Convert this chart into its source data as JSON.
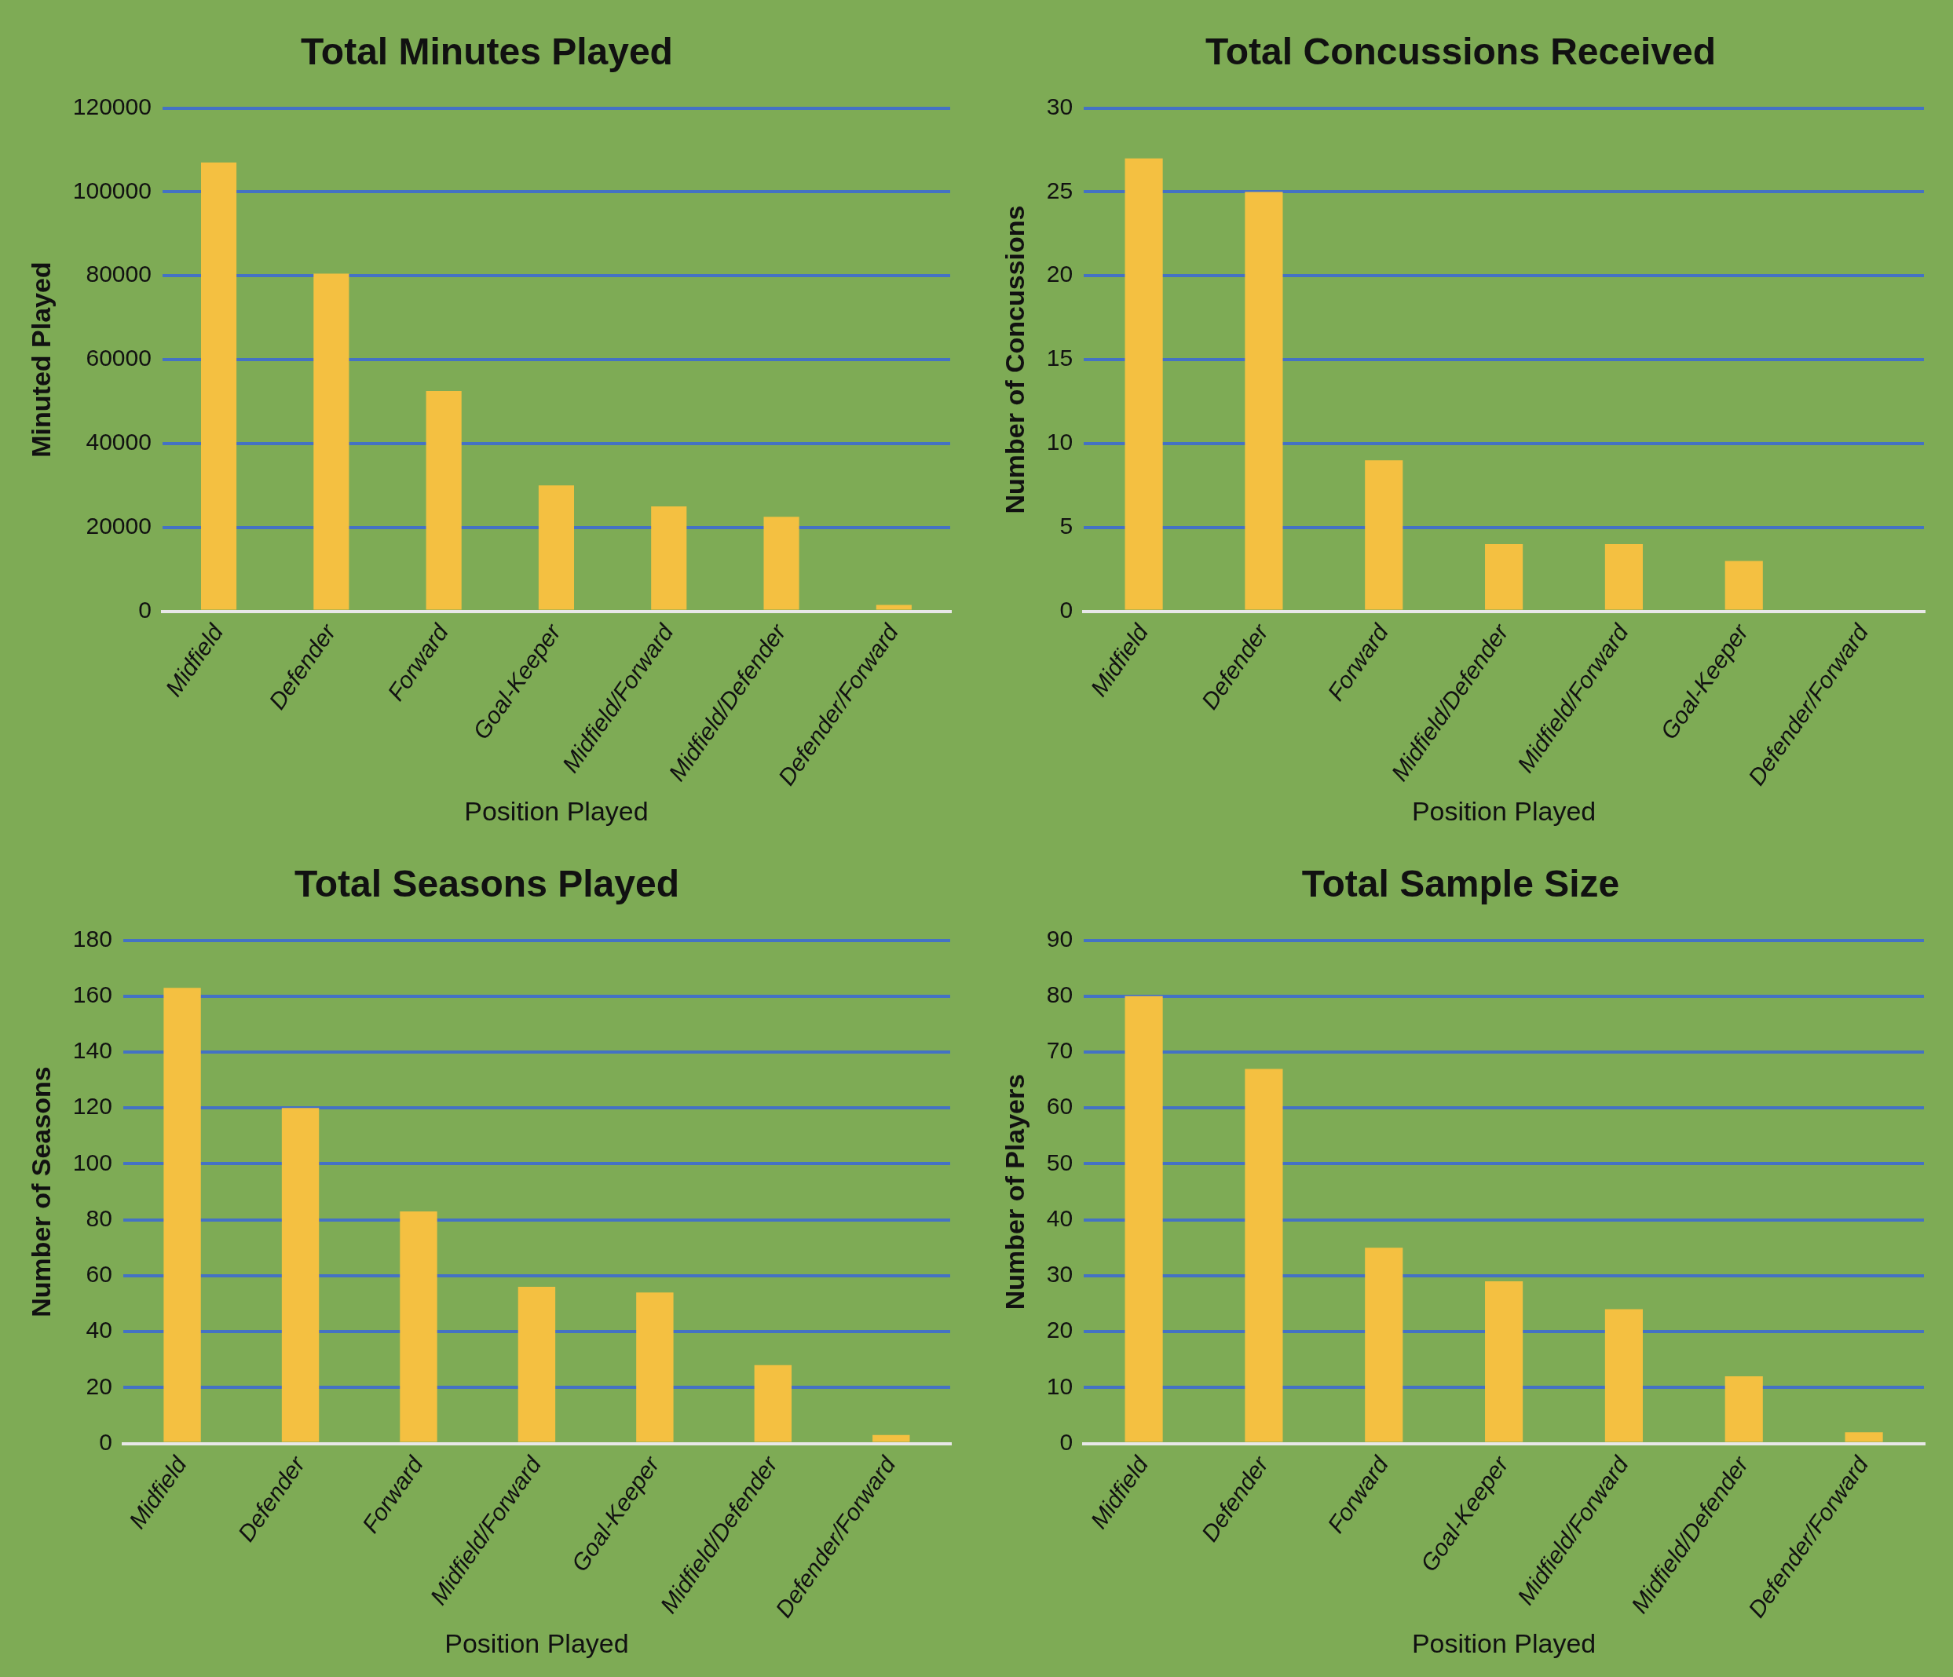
{
  "chart_data": [
    {
      "type": "bar",
      "title": "Total Minutes Played",
      "xlabel": "Position Played",
      "ylabel": "Minuted Played",
      "categories": [
        "Midfield",
        "Defender",
        "Forward",
        "Goal-Keeper",
        "Midfield/Forward",
        "Midfield/Defender",
        "Defender/Forward"
      ],
      "values": [
        107000,
        80500,
        52500,
        30000,
        25000,
        22500,
        1500
      ],
      "color": "#f4c041",
      "ylim": [
        0,
        120000
      ],
      "yticks": [
        0,
        20000,
        40000,
        60000,
        80000,
        100000,
        120000
      ],
      "grid": "y"
    },
    {
      "type": "bar",
      "title": "Total Concussions Received",
      "xlabel": "Position Played",
      "ylabel": "Number of Concussions",
      "categories": [
        "Midfield",
        "Defender",
        "Forward",
        "Midfield/Defender",
        "Midfield/Forward",
        "Goal-Keeper",
        "Defender/Forward"
      ],
      "values": [
        27,
        25,
        9,
        4,
        4,
        3,
        0
      ],
      "color": "#f4c041",
      "ylim": [
        0,
        30
      ],
      "yticks": [
        0,
        5,
        10,
        15,
        20,
        25,
        30
      ],
      "grid": "y"
    },
    {
      "type": "bar",
      "title": "Total Seasons Played",
      "xlabel": "Position Played",
      "ylabel": "Number of Seasons",
      "categories": [
        "Midfield",
        "Defender",
        "Forward",
        "Midfield/Forward",
        "Goal-Keeper",
        "Midfield/Defender",
        "Defender/Forward"
      ],
      "values": [
        163,
        120,
        83,
        56,
        54,
        28,
        3
      ],
      "color": "#f4c041",
      "ylim": [
        0,
        180
      ],
      "yticks": [
        0,
        20,
        40,
        60,
        80,
        100,
        120,
        140,
        160,
        180
      ],
      "grid": "y"
    },
    {
      "type": "bar",
      "title": "Total Sample Size",
      "xlabel": "Position Played",
      "ylabel": "Number of Players",
      "categories": [
        "Midfield",
        "Defender",
        "Forward",
        "Goal-Keeper",
        "Midfield/Forward",
        "Midfield/Defender",
        "Defender/Forward"
      ],
      "values": [
        80,
        67,
        35,
        29,
        24,
        12,
        2
      ],
      "color": "#f4c041",
      "ylim": [
        0,
        90
      ],
      "yticks": [
        0,
        10,
        20,
        30,
        40,
        50,
        60,
        70,
        80,
        90
      ],
      "grid": "y"
    }
  ]
}
